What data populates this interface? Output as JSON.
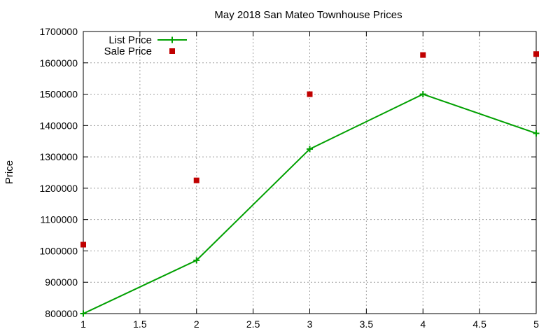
{
  "chart_data": {
    "type": "line",
    "title": "May 2018 San Mateo Townhouse Prices",
    "xlabel": "",
    "ylabel": "Price",
    "xlim": [
      1,
      5
    ],
    "ylim": [
      800000,
      1700000
    ],
    "x_ticks": [
      "1",
      "1.5",
      "2",
      "2.5",
      "3",
      "3.5",
      "4",
      "4.5",
      "5"
    ],
    "x_tick_values": [
      1,
      1.5,
      2,
      2.5,
      3,
      3.5,
      4,
      4.5,
      5
    ],
    "y_ticks": [
      "800000",
      "900000",
      "1000000",
      "1100000",
      "1200000",
      "1300000",
      "1400000",
      "1500000",
      "1600000",
      "1700000"
    ],
    "y_tick_values": [
      800000,
      900000,
      1000000,
      1100000,
      1200000,
      1300000,
      1400000,
      1500000,
      1600000,
      1700000
    ],
    "grid": true,
    "legend_position": "top-left",
    "series": [
      {
        "name": "List Price",
        "style": "linespoints",
        "marker": "plus",
        "color": "#00a000",
        "x": [
          1,
          2,
          3,
          4,
          5
        ],
        "y": [
          800000,
          970000,
          1325000,
          1500000,
          1375000
        ]
      },
      {
        "name": "Sale Price",
        "style": "points",
        "marker": "square",
        "color": "#c00000",
        "x": [
          1,
          2,
          3,
          4,
          5
        ],
        "y": [
          1020000,
          1225000,
          1500000,
          1625000,
          1628000
        ]
      }
    ]
  }
}
